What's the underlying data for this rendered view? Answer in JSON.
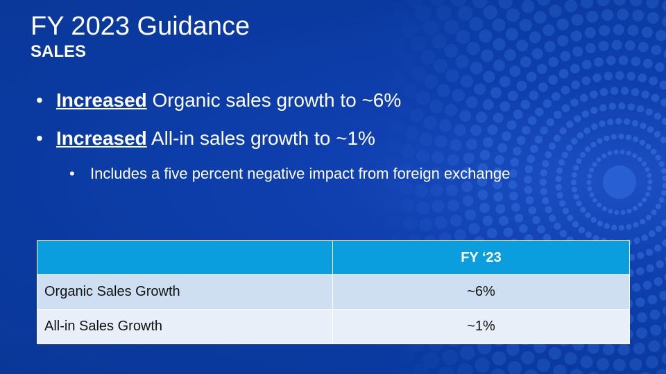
{
  "slide": {
    "title": "FY 2023 Guidance",
    "subtitle": "SALES"
  },
  "bullets": [
    {
      "marker": "•",
      "emphasis": "Increased",
      "text": " Organic sales growth to ~6%"
    },
    {
      "marker": "•",
      "emphasis": "Increased",
      "text": " All-in sales growth to ~1%"
    }
  ],
  "sub_bullet": {
    "marker": "•",
    "text": "Includes a five percent negative impact from foreign exchange"
  },
  "table": {
    "header": [
      "",
      "FY ‘23"
    ],
    "rows": [
      {
        "label": "Organic Sales Growth",
        "value": "~6%"
      },
      {
        "label": "All-in Sales Growth",
        "value": "~1%"
      }
    ]
  },
  "colors": {
    "background": "#0a3aa0",
    "table_header": "#0a9ede",
    "row_1": "#cddff0",
    "row_2": "#e8eff8"
  }
}
